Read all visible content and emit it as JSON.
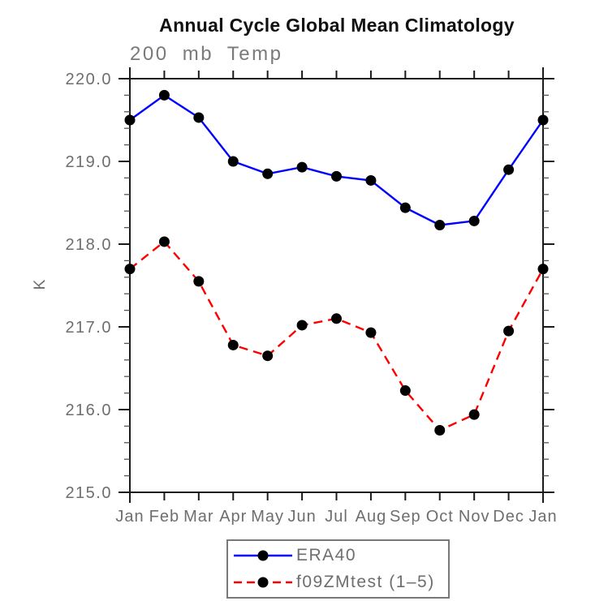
{
  "title": "Annual Cycle Global Mean Climatology",
  "chart_data": {
    "type": "line",
    "title": "Annual Cycle Global Mean Climatology",
    "subtitle": "200 mb Temp",
    "xlabel": "",
    "ylabel": "K",
    "categories": [
      "Jan",
      "Feb",
      "Mar",
      "Apr",
      "May",
      "Jun",
      "Jul",
      "Aug",
      "Sep",
      "Oct",
      "Nov",
      "Dec",
      "Jan"
    ],
    "ylim": [
      215.0,
      220.0
    ],
    "ytick_step": 1.0,
    "ytick_minor_step": 0.2,
    "ytick_labels": [
      "215.0",
      "216.0",
      "217.0",
      "218.0",
      "219.0",
      "220.0"
    ],
    "grid": false,
    "legend_position": "bottom-center",
    "series": [
      {
        "name": "ERA40",
        "color": "#0000ff",
        "line_style": "solid",
        "marker": "circle",
        "marker_color": "#000000",
        "values": [
          219.5,
          219.8,
          219.53,
          219.0,
          218.85,
          218.93,
          218.82,
          218.77,
          218.44,
          218.23,
          218.28,
          218.9,
          219.5
        ]
      },
      {
        "name": "f09ZMtest (1–5)",
        "color": "#ff0000",
        "line_style": "dashed",
        "marker": "circle",
        "marker_color": "#000000",
        "values": [
          217.7,
          218.03,
          217.55,
          216.78,
          216.65,
          217.02,
          217.1,
          216.93,
          216.23,
          215.75,
          215.94,
          216.95,
          217.7
        ]
      }
    ]
  },
  "colors": {
    "axis": "#1a1a1a",
    "minor_tick": "#555555",
    "tick_label": "#6e6e6e",
    "subtitle_text": "#7a7a7a",
    "title_text": "#101010",
    "legend_border": "#787878",
    "legend_text": "#6e6e6e",
    "background": "#ffffff"
  }
}
